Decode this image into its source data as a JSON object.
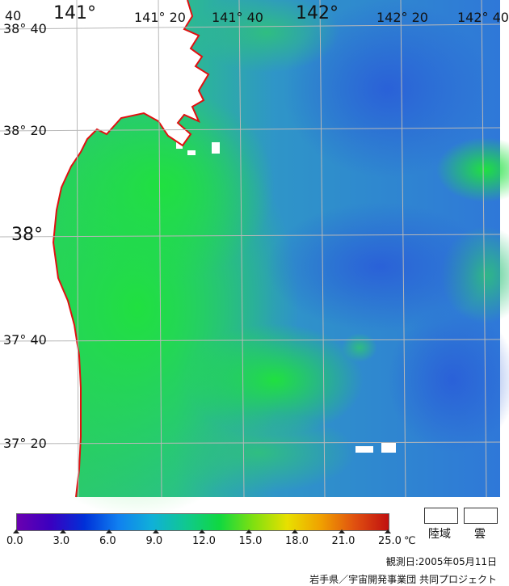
{
  "map": {
    "lon_labels": [
      {
        "text": "141°",
        "size": "big"
      },
      {
        "text": "141° 20",
        "size": "normal"
      },
      {
        "text": "141° 40",
        "size": "normal"
      },
      {
        "text": "142°",
        "size": "big"
      },
      {
        "text": "142° 20",
        "size": "normal"
      },
      {
        "text": "142° 40",
        "size": "normal"
      }
    ],
    "lat_labels": [
      {
        "text": "38° 40",
        "size": "normal"
      },
      {
        "text": "38° 20",
        "size": "normal"
      },
      {
        "text": "38°",
        "size": "big"
      },
      {
        "text": "37° 40",
        "size": "normal"
      },
      {
        "text": "37° 20",
        "size": "normal"
      }
    ],
    "corner_fragment": "40",
    "colors": {
      "coastline": "#e01010",
      "grid": "#b8b8b8",
      "land": "#ffffff",
      "cloud": "#ffffff",
      "warm_water": "#2ad84a",
      "mid_water": "#28b6a0",
      "cool_water": "#2f7fdc",
      "cold_water": "#2456d0"
    }
  },
  "colorbar": {
    "ticks": [
      "0.0",
      "3.0",
      "6.0",
      "9.0",
      "12.0",
      "15.0",
      "18.0",
      "21.0",
      "25.0"
    ],
    "unit": "℃",
    "stops": [
      "#6a00b0",
      "#3a00c0",
      "#0030d8",
      "#1080f0",
      "#10b0d8",
      "#10c890",
      "#10d840",
      "#80e010",
      "#e8e000",
      "#f0a000",
      "#e05010",
      "#c01010"
    ]
  },
  "legend": {
    "land_label": "陸域",
    "cloud_label": "雲"
  },
  "observation_date": "観測日:2005年05月11日",
  "credit": "岩手県／宇宙開発事業団 共同プロジェクト"
}
